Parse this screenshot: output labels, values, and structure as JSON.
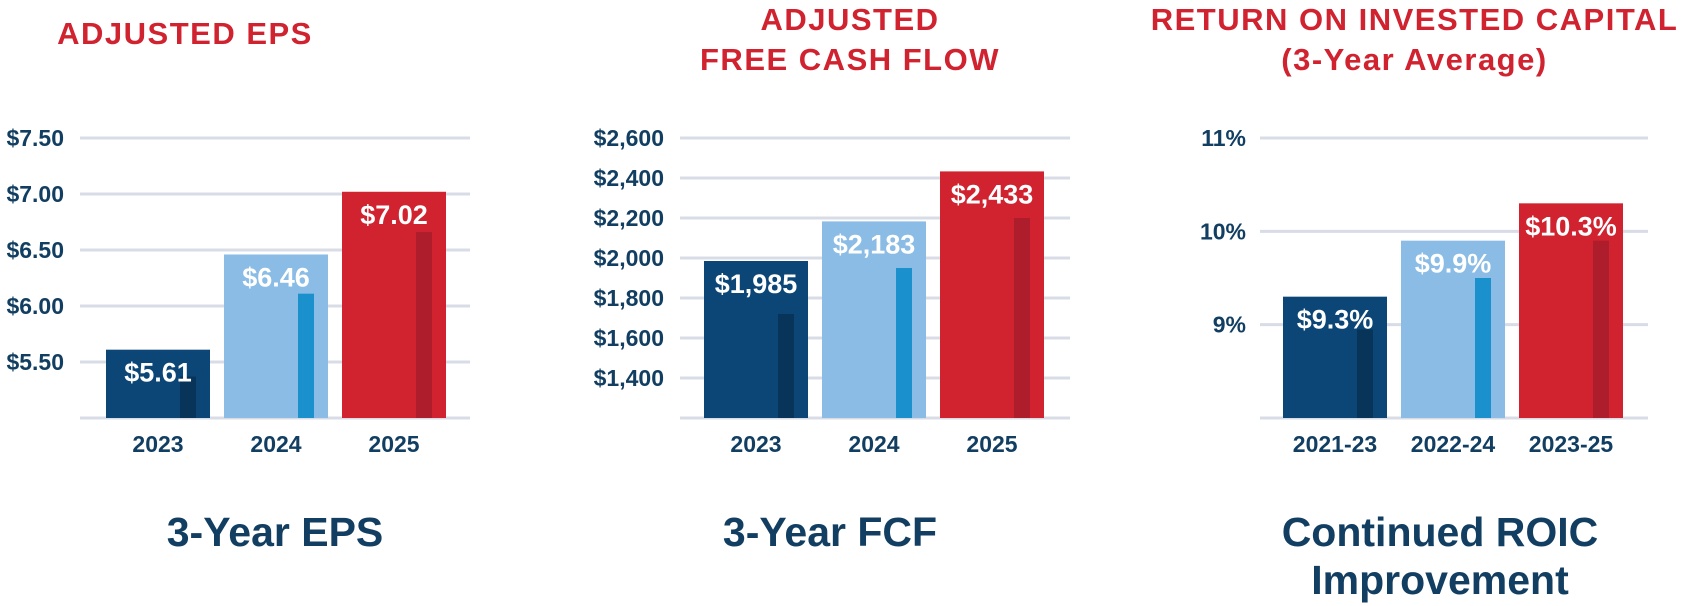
{
  "panels": [
    {
      "title_lines": [
        "ADJUSTED EPS"
      ],
      "caption_lines": [
        "3-Year EPS"
      ]
    },
    {
      "title_lines": [
        "ADJUSTED",
        "FREE CASH FLOW"
      ],
      "caption_lines": [
        "3-Year FCF"
      ]
    },
    {
      "title_lines": [
        "RETURN ON INVESTED CAPITAL",
        "(3-Year Average)"
      ],
      "caption_lines": [
        "Continued ROIC",
        "Improvement"
      ]
    }
  ],
  "colors": {
    "title": "#d0222f",
    "caption": "#123e62",
    "axis_text": "#123e62",
    "grid": "#d8dce6",
    "bars": [
      "#0b4677",
      "#8bbce5",
      "#d0222f"
    ],
    "accents": [
      "#083459",
      "#1a90cc",
      "#ad1d2b"
    ]
  },
  "chart_data": [
    {
      "type": "bar",
      "title": "ADJUSTED EPS",
      "categories": [
        "2023",
        "2024",
        "2025"
      ],
      "values": [
        5.61,
        6.46,
        7.02
      ],
      "value_labels": [
        "$5.61",
        "$6.46",
        "$7.02"
      ],
      "accent_values": [
        5.37,
        6.11,
        6.66
      ],
      "ylim": [
        5.0,
        7.5
      ],
      "yticks": [
        5.5,
        6.0,
        6.5,
        7.0,
        7.5
      ],
      "ytick_labels": [
        "$5.50",
        "$6.00",
        "$6.50",
        "$7.00",
        "$7.50"
      ],
      "grid": true
    },
    {
      "type": "bar",
      "title": "ADJUSTED FREE CASH FLOW",
      "categories": [
        "2023",
        "2024",
        "2025"
      ],
      "values": [
        1985,
        2183,
        2433
      ],
      "value_labels": [
        "$1,985",
        "$2,183",
        "$2,433"
      ],
      "accent_values": [
        1720,
        1950,
        2200
      ],
      "ylim": [
        1200,
        2600
      ],
      "yticks": [
        1400,
        1600,
        1800,
        2000,
        2200,
        2400,
        2600
      ],
      "ytick_labels": [
        "$1,400",
        "$1,600",
        "$1,800",
        "$2,000",
        "$2,200",
        "$2,400",
        "$2,600"
      ],
      "grid": true
    },
    {
      "type": "bar",
      "title": "RETURN ON INVESTED CAPITAL (3-Year Average)",
      "categories": [
        "2021-23",
        "2022-24",
        "2023-25"
      ],
      "values": [
        9.3,
        9.9,
        10.3
      ],
      "value_labels": [
        "$9.3%",
        "$9.9%",
        "$10.3%"
      ],
      "accent_values": [
        8.95,
        9.5,
        9.9
      ],
      "ylim": [
        8.0,
        11.0
      ],
      "yticks": [
        9,
        10,
        11
      ],
      "ytick_labels": [
        "9%",
        "10%",
        "11%"
      ],
      "grid": true
    }
  ]
}
